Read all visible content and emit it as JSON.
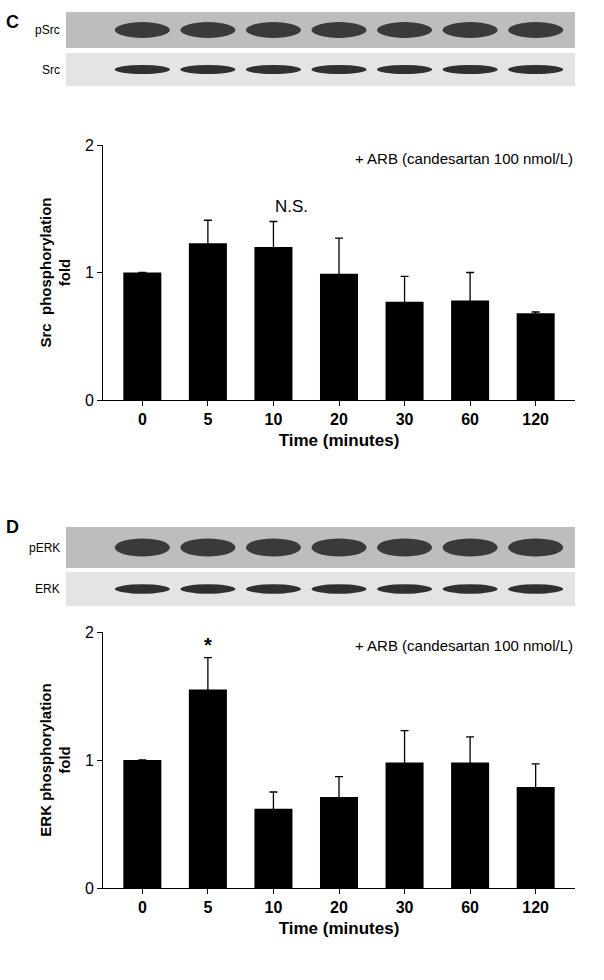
{
  "chart_data": [
    {
      "type": "bar",
      "title": "C",
      "blot_labels": [
        "pSrc",
        "Src"
      ],
      "annotations": [
        {
          "text": "+ ARB (candesartan 100 nmol/L)"
        },
        {
          "text": "N.S."
        }
      ],
      "categories": [
        "0",
        "5",
        "10",
        "20",
        "30",
        "60",
        "120"
      ],
      "values": [
        1.0,
        1.23,
        1.2,
        0.99,
        0.77,
        0.78,
        0.68
      ],
      "errors": [
        0.0,
        0.18,
        0.2,
        0.28,
        0.2,
        0.22,
        0.01
      ],
      "color": "#000000",
      "x_label": "Time (minutes)",
      "y_label": "Src  phosphorylation\nfold",
      "ylim": [
        0,
        2
      ],
      "yticks": [
        0,
        1,
        2
      ],
      "grid": false
    },
    {
      "type": "bar",
      "title": "D",
      "blot_labels": [
        "pERK",
        "ERK"
      ],
      "annotations": [
        {
          "text": "+ ARB (candesartan 100 nmol/L)"
        },
        {
          "text": "*",
          "category": "5"
        }
      ],
      "categories": [
        "0",
        "5",
        "10",
        "20",
        "30",
        "60",
        "120"
      ],
      "values": [
        1.0,
        1.55,
        0.62,
        0.71,
        0.98,
        0.98,
        0.79
      ],
      "errors": [
        0.0,
        0.25,
        0.13,
        0.16,
        0.25,
        0.2,
        0.18
      ],
      "color": "#000000",
      "x_label": "Time (minutes)",
      "y_label": "ERK phosphorylation\nfold",
      "ylim": [
        0,
        2
      ],
      "yticks": [
        0,
        1,
        2
      ],
      "grid": false
    }
  ]
}
